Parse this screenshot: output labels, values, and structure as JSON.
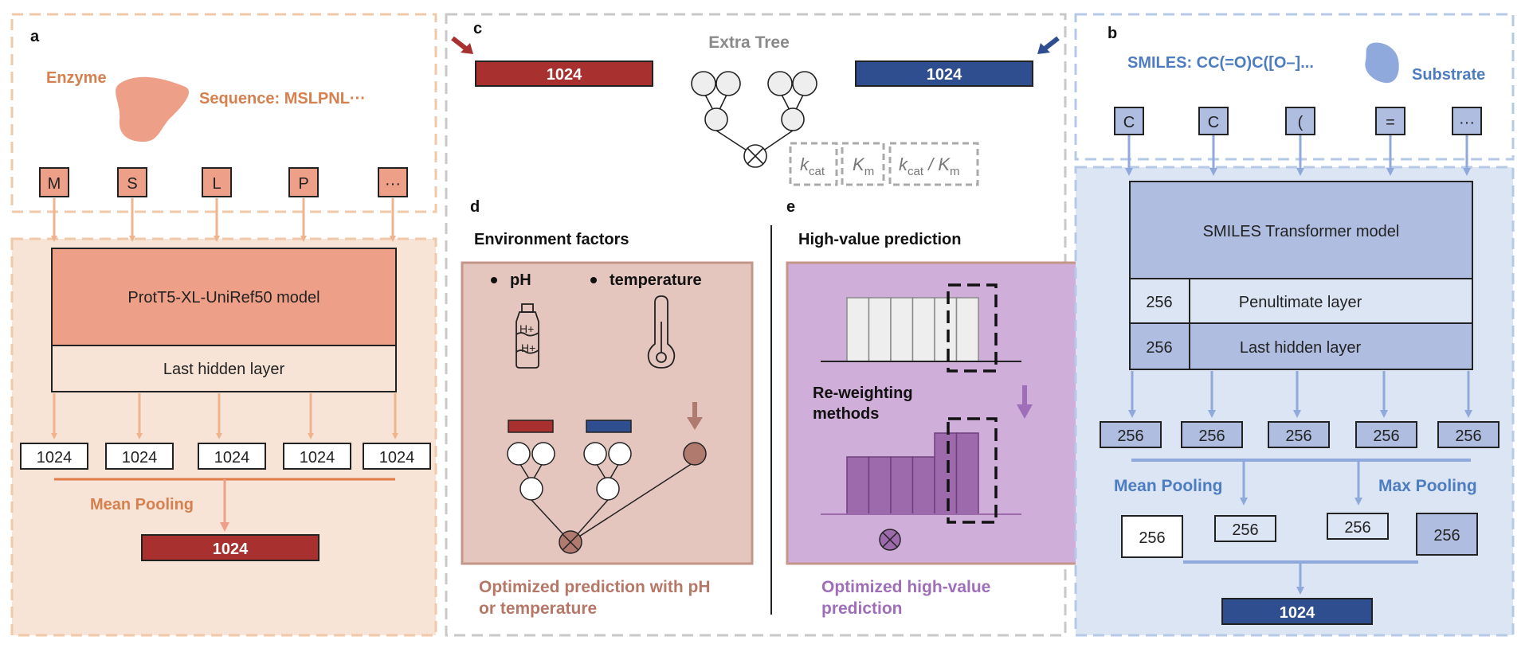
{
  "panel_a": {
    "label": "a",
    "enzyme_label": "Enzyme",
    "sequence_label": "Sequence: MSLPNL···",
    "tokens": [
      "M",
      "S",
      "L",
      "P",
      "···"
    ],
    "model_label": "ProtT5-XL-UniRef50 model",
    "hidden_layer_label": "Last hidden layer",
    "embeddings": [
      "1024",
      "1024",
      "1024",
      "1024",
      "1024"
    ],
    "pooling_label": "Mean Pooling",
    "output": "1024"
  },
  "panel_b": {
    "label": "b",
    "smiles_label": "SMILES: CC(=O)C([O–]...",
    "substrate_label": "Substrate",
    "tokens": [
      "C",
      "C",
      "(",
      "=",
      "···"
    ],
    "model_label": "SMILES Transformer model",
    "penultimate_dim": "256",
    "penultimate_label": "Penultimate layer",
    "last_hidden_dim": "256",
    "last_hidden_label": "Last hidden layer",
    "embeddings": [
      "256",
      "256",
      "256",
      "256",
      "256"
    ],
    "mean_pooling_label": "Mean Pooling",
    "max_pooling_label": "Max Pooling",
    "pooled": [
      "256",
      "256",
      "256",
      "256"
    ],
    "output": "1024"
  },
  "panel_c": {
    "label": "c",
    "title": "Extra Tree",
    "left_vector": "1024",
    "right_vector": "1024",
    "targets": [
      {
        "main": "k",
        "sub": "cat",
        "rest": ""
      },
      {
        "main": "K",
        "sub": "m",
        "rest": ""
      },
      {
        "main": "k",
        "sub": "cat",
        "rest": " / K",
        "sub2": "m"
      }
    ]
  },
  "panel_d": {
    "label": "d",
    "title": "Environment factors",
    "factor_1": "pH",
    "factor_2": "temperature",
    "ph_glyph_1": "H+",
    "ph_glyph_2": "H+",
    "caption": [
      "Optimized prediction with pH",
      "or temperature"
    ]
  },
  "panel_e": {
    "label": "e",
    "title": "High-value prediction",
    "method_label": [
      "Re-weighting",
      "methods"
    ],
    "caption": [
      "Optimized high-value",
      "prediction"
    ],
    "hist_before": [
      1,
      1,
      1,
      1,
      1,
      1
    ],
    "hist_after": [
      0.6,
      0.6,
      0.6,
      0.6,
      0.85,
      0.85
    ]
  },
  "colors": {
    "enzyme_salmon": "#ed9f87",
    "enzyme_panel_bg": "#f8e4d6",
    "enzyme_dash": "#f1c9a8",
    "enzyme_text": "#d6804f",
    "enzyme_arrow": "#efb48e",
    "dark_red": "#a8302e",
    "dark_blue": "#2e4e8f",
    "blue_light": "#aebde0",
    "blue_panel_bg": "#dbe5f3",
    "blue_dash": "#b6c9e6",
    "blue_text": "#4d7cc0",
    "blue_arrow": "#90a9dc",
    "gray_dash": "#c8c8c8",
    "pink_bg": "#e5c6bf",
    "pink_border": "#c49589",
    "pink_text": "#b77767",
    "purple_bg": "#cfaed9",
    "purple_border": "#c49589",
    "purple_text": "#9e6eb9",
    "purple_bar": "#9d6bab"
  }
}
